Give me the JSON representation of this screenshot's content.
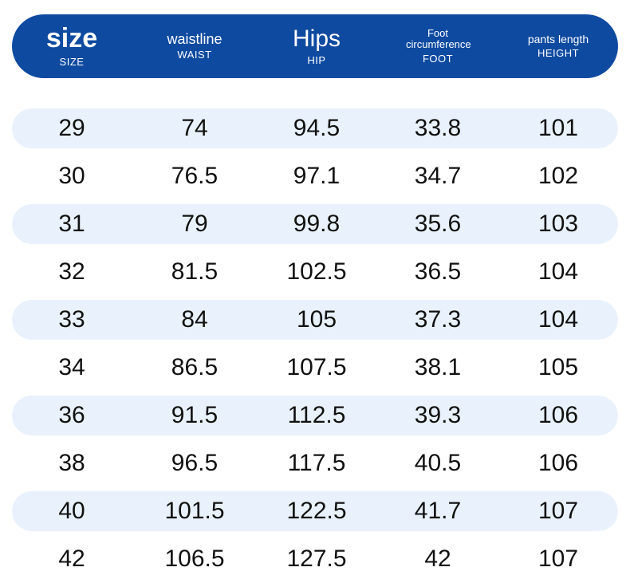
{
  "header": {
    "columns": [
      {
        "title": "size",
        "subtitle": "SIZE"
      },
      {
        "title": "waistline",
        "subtitle": "WAIST"
      },
      {
        "title": "Hips",
        "subtitle": "HIP"
      },
      {
        "title": "Foot circumference",
        "subtitle": "FOOT"
      },
      {
        "title": "pants length",
        "subtitle": "HEIGHT"
      }
    ]
  },
  "table": {
    "rows": [
      [
        "29",
        "74",
        "94.5",
        "33.8",
        "101"
      ],
      [
        "30",
        "76.5",
        "97.1",
        "34.7",
        "102"
      ],
      [
        "31",
        "79",
        "99.8",
        "35.6",
        "103"
      ],
      [
        "32",
        "81.5",
        "102.5",
        "36.5",
        "104"
      ],
      [
        "33",
        "84",
        "105",
        "37.3",
        "104"
      ],
      [
        "34",
        "86.5",
        "107.5",
        "38.1",
        "105"
      ],
      [
        "36",
        "91.5",
        "112.5",
        "39.3",
        "106"
      ],
      [
        "38",
        "96.5",
        "117.5",
        "40.5",
        "106"
      ],
      [
        "40",
        "101.5",
        "122.5",
        "41.7",
        "107"
      ],
      [
        "42",
        "106.5",
        "127.5",
        "42",
        "107"
      ]
    ]
  }
}
